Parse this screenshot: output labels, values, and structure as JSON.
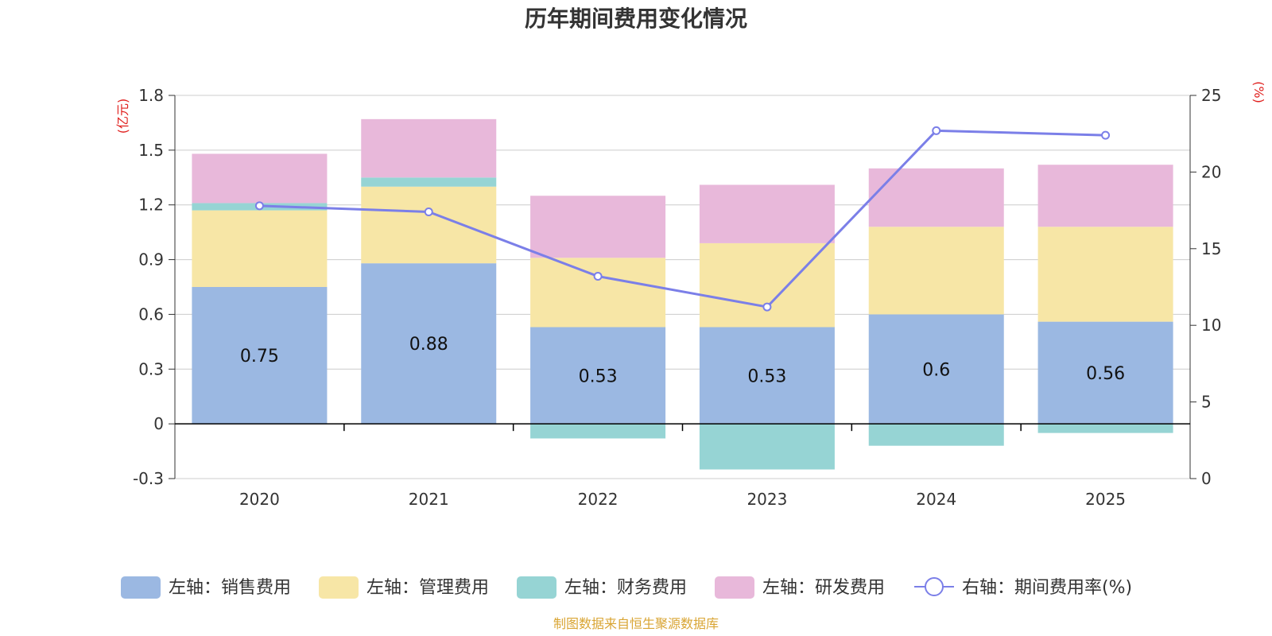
{
  "chart_data": {
    "type": "bar",
    "title": "历年期间费用变化情况",
    "categories": [
      "2020",
      "2021",
      "2022",
      "2023",
      "2024",
      "2025"
    ],
    "left_axis": {
      "unit_label": "(亿元)",
      "range": [
        -0.3,
        1.8
      ],
      "ticks": [
        "-0.3",
        "0",
        "0.3",
        "0.6",
        "0.9",
        "1.2",
        "1.5",
        "1.8"
      ],
      "tick_values": [
        -0.3,
        0,
        0.3,
        0.6,
        0.9,
        1.2,
        1.5,
        1.8
      ]
    },
    "right_axis": {
      "unit_label": "(%)",
      "range": [
        0,
        25
      ],
      "ticks": [
        "0",
        "5",
        "10",
        "15",
        "20",
        "25"
      ],
      "tick_values": [
        0,
        5,
        10,
        15,
        20,
        25
      ]
    },
    "series": [
      {
        "name": "左轴：销售费用",
        "type": "bar",
        "color": "#9bb8e2",
        "values": [
          0.75,
          0.88,
          0.53,
          0.53,
          0.6,
          0.56
        ],
        "labels": [
          "0.75",
          "0.88",
          "0.53",
          "0.53",
          "0.6",
          "0.56"
        ]
      },
      {
        "name": "左轴：管理费用",
        "type": "bar",
        "color": "#f7e6a6",
        "values": [
          0.42,
          0.42,
          0.38,
          0.46,
          0.48,
          0.52
        ]
      },
      {
        "name": "左轴：财务费用",
        "type": "bar",
        "color": "#96d4d4",
        "values": [
          0.04,
          0.05,
          -0.08,
          -0.25,
          -0.12,
          -0.05
        ]
      },
      {
        "name": "左轴：研发费用",
        "type": "bar",
        "color": "#e8b8da",
        "values": [
          0.27,
          0.32,
          0.34,
          0.32,
          0.32,
          0.34
        ]
      },
      {
        "name": "右轴：期间费用率(%)",
        "type": "line",
        "color": "#7b7fe8",
        "values": [
          17.8,
          17.4,
          13.2,
          11.2,
          22.7,
          22.4
        ]
      }
    ],
    "legend_position": "bottom",
    "grid": true
  },
  "source": "制图数据来自恒生聚源数据库",
  "colors": {
    "axis": "#333333",
    "grid": "#cccccc",
    "unit_label": "#e0201e",
    "source": "#d9a534"
  }
}
